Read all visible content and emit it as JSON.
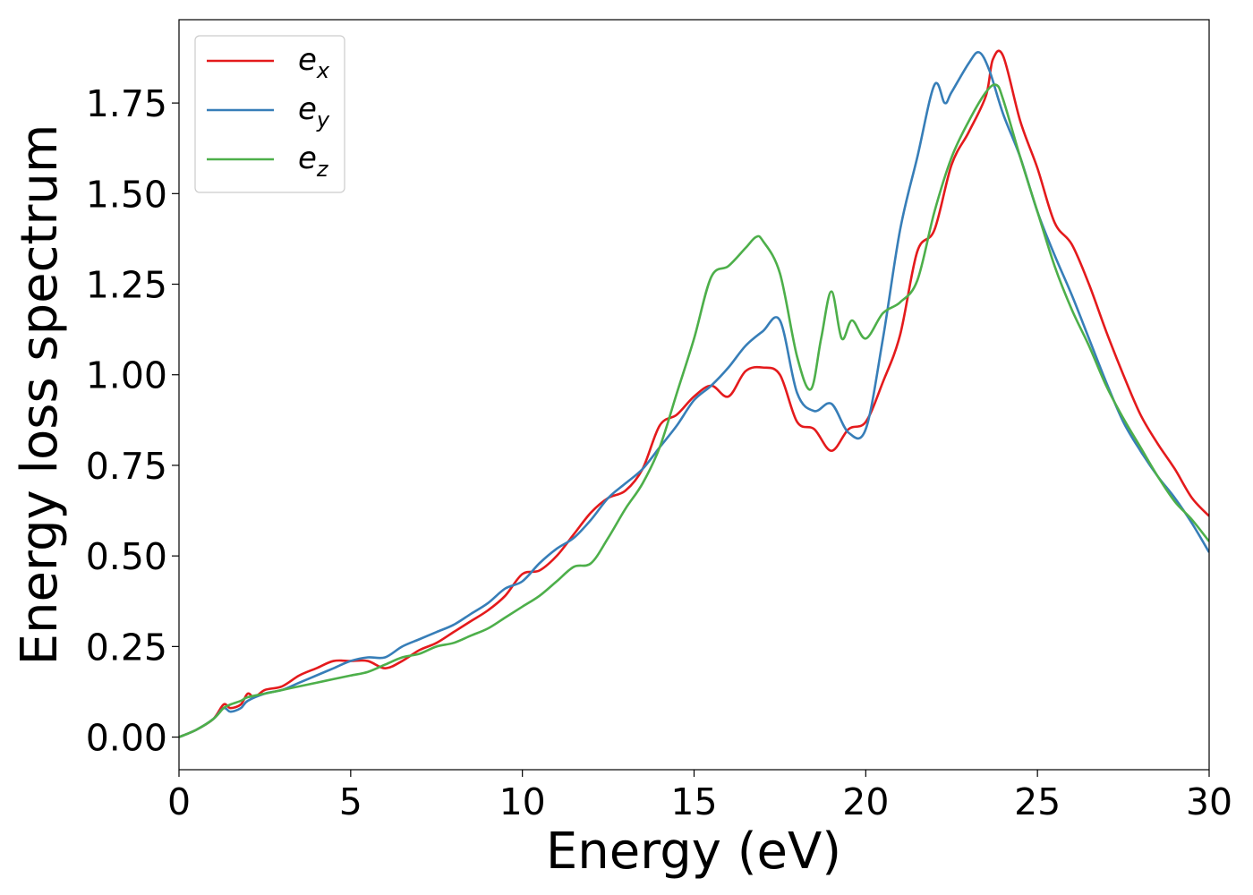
{
  "chart_data": {
    "type": "line",
    "title": "",
    "xlabel": "Energy (eV)",
    "ylabel": "Energy loss spectrum",
    "xlim": [
      0,
      30
    ],
    "ylim": [
      -0.09,
      1.98
    ],
    "x_ticks": [
      0,
      5,
      10,
      15,
      20,
      25,
      30
    ],
    "x_tick_labels": [
      "0",
      "5",
      "10",
      "15",
      "20",
      "25",
      "30"
    ],
    "y_ticks": [
      0.0,
      0.25,
      0.5,
      0.75,
      1.0,
      1.25,
      1.5,
      1.75
    ],
    "y_tick_labels": [
      "0.00",
      "0.25",
      "0.50",
      "0.75",
      "1.00",
      "1.25",
      "1.50",
      "1.75"
    ],
    "grid": false,
    "legend": {
      "position": "top-left",
      "entries": [
        {
          "base": "e",
          "sub": "x"
        },
        {
          "base": "e",
          "sub": "y"
        },
        {
          "base": "e",
          "sub": "z"
        }
      ]
    },
    "series": [
      {
        "key": "ex",
        "color": "#e41a1c",
        "x": [
          0,
          0.5,
          1.0,
          1.3,
          1.5,
          1.8,
          2.0,
          2.2,
          2.5,
          3.0,
          3.5,
          4.0,
          4.5,
          5.0,
          5.5,
          6.0,
          6.5,
          7.0,
          7.5,
          8.0,
          8.5,
          9.0,
          9.5,
          10.0,
          10.5,
          11.0,
          11.5,
          12.0,
          12.5,
          13.0,
          13.5,
          14.0,
          14.5,
          15.0,
          15.5,
          16.0,
          16.5,
          17.0,
          17.5,
          18.0,
          18.5,
          19.0,
          19.5,
          20.0,
          20.5,
          21.0,
          21.5,
          22.0,
          22.5,
          23.0,
          23.5,
          23.7,
          24.0,
          24.5,
          25.0,
          25.5,
          26.0,
          26.5,
          27.0,
          27.5,
          28.0,
          28.5,
          29.0,
          29.5,
          30.0
        ],
        "y": [
          0.0,
          0.02,
          0.05,
          0.09,
          0.08,
          0.09,
          0.12,
          0.11,
          0.13,
          0.14,
          0.17,
          0.19,
          0.21,
          0.21,
          0.21,
          0.19,
          0.21,
          0.24,
          0.26,
          0.29,
          0.32,
          0.35,
          0.39,
          0.45,
          0.46,
          0.5,
          0.56,
          0.62,
          0.66,
          0.68,
          0.74,
          0.86,
          0.89,
          0.94,
          0.97,
          0.94,
          1.01,
          1.02,
          1.0,
          0.87,
          0.85,
          0.79,
          0.85,
          0.87,
          0.98,
          1.11,
          1.34,
          1.4,
          1.58,
          1.67,
          1.77,
          1.87,
          1.88,
          1.7,
          1.57,
          1.42,
          1.36,
          1.25,
          1.12,
          1.0,
          0.89,
          0.81,
          0.74,
          0.66,
          0.61
        ]
      },
      {
        "key": "ey",
        "color": "#377eb8",
        "x": [
          0,
          0.5,
          1.0,
          1.3,
          1.5,
          1.8,
          2.0,
          2.5,
          3.0,
          3.5,
          4.0,
          4.5,
          5.0,
          5.5,
          6.0,
          6.5,
          7.0,
          7.5,
          8.0,
          8.5,
          9.0,
          9.5,
          10.0,
          10.5,
          11.0,
          11.5,
          12.0,
          12.5,
          13.0,
          13.5,
          14.0,
          14.5,
          15.0,
          15.5,
          16.0,
          16.5,
          17.0,
          17.5,
          18.0,
          18.5,
          19.0,
          19.5,
          20.0,
          20.5,
          21.0,
          21.5,
          22.0,
          22.3,
          22.5,
          23.0,
          23.3,
          23.6,
          24.0,
          24.5,
          25.0,
          25.5,
          26.0,
          26.5,
          27.0,
          27.5,
          28.0,
          28.5,
          29.0,
          29.5,
          30.0
        ],
        "y": [
          0.0,
          0.02,
          0.05,
          0.08,
          0.07,
          0.08,
          0.1,
          0.12,
          0.13,
          0.15,
          0.17,
          0.19,
          0.21,
          0.22,
          0.22,
          0.25,
          0.27,
          0.29,
          0.31,
          0.34,
          0.37,
          0.41,
          0.43,
          0.48,
          0.52,
          0.55,
          0.6,
          0.66,
          0.7,
          0.74,
          0.8,
          0.86,
          0.93,
          0.97,
          1.02,
          1.08,
          1.12,
          1.15,
          0.95,
          0.9,
          0.92,
          0.84,
          0.85,
          1.1,
          1.4,
          1.6,
          1.8,
          1.75,
          1.78,
          1.86,
          1.89,
          1.84,
          1.72,
          1.6,
          1.45,
          1.33,
          1.22,
          1.1,
          0.98,
          0.87,
          0.79,
          0.72,
          0.66,
          0.59,
          0.51
        ]
      },
      {
        "key": "ez",
        "color": "#4daf4a",
        "x": [
          0,
          0.5,
          1.0,
          1.3,
          1.5,
          1.8,
          2.0,
          2.5,
          3.0,
          3.5,
          4.0,
          4.5,
          5.0,
          5.5,
          6.0,
          6.5,
          7.0,
          7.5,
          8.0,
          8.5,
          9.0,
          9.5,
          10.0,
          10.5,
          11.0,
          11.5,
          12.0,
          12.5,
          13.0,
          13.5,
          14.0,
          14.5,
          15.0,
          15.5,
          16.0,
          16.5,
          16.8,
          17.0,
          17.5,
          18.0,
          18.4,
          18.7,
          19.0,
          19.3,
          19.6,
          20.0,
          20.5,
          21.0,
          21.5,
          22.0,
          22.5,
          23.0,
          23.5,
          23.8,
          24.0,
          24.5,
          25.0,
          25.5,
          26.0,
          26.5,
          27.0,
          27.5,
          28.0,
          28.5,
          29.0,
          29.5,
          30.0
        ],
        "y": [
          0.0,
          0.02,
          0.05,
          0.08,
          0.09,
          0.1,
          0.11,
          0.12,
          0.13,
          0.14,
          0.15,
          0.16,
          0.17,
          0.18,
          0.2,
          0.22,
          0.23,
          0.25,
          0.26,
          0.28,
          0.3,
          0.33,
          0.36,
          0.39,
          0.43,
          0.47,
          0.48,
          0.55,
          0.63,
          0.7,
          0.8,
          0.95,
          1.1,
          1.27,
          1.3,
          1.35,
          1.38,
          1.37,
          1.28,
          1.05,
          0.96,
          1.1,
          1.23,
          1.1,
          1.15,
          1.1,
          1.17,
          1.2,
          1.26,
          1.45,
          1.6,
          1.7,
          1.78,
          1.8,
          1.76,
          1.6,
          1.45,
          1.3,
          1.18,
          1.08,
          0.97,
          0.88,
          0.8,
          0.72,
          0.65,
          0.6,
          0.54
        ]
      }
    ]
  }
}
